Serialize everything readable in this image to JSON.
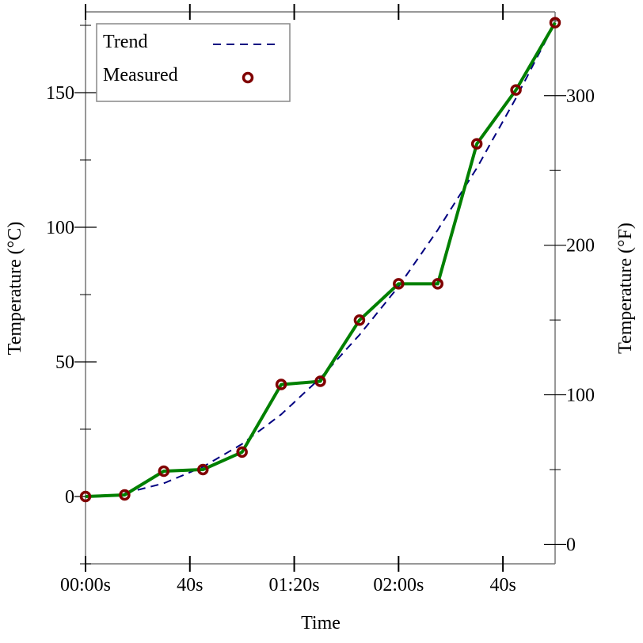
{
  "chart_data": {
    "type": "line",
    "xlabel": "Time",
    "ylabel": "Temperature (°C)",
    "y2label": "Temperature (°F)",
    "xlim": [
      0,
      180
    ],
    "ylim": [
      -25,
      180
    ],
    "y2lim": [
      -13,
      356
    ],
    "xticks": [
      0,
      40,
      80,
      120,
      160
    ],
    "xtick_labels": [
      "00:00s",
      "40s",
      "01:20s",
      "02:00s",
      "40s"
    ],
    "yticks": [
      0,
      50,
      100,
      150
    ],
    "ytick_labels": [
      "0",
      "50",
      "100",
      "150"
    ],
    "y2ticks": [
      0,
      100,
      200,
      300
    ],
    "y2tick_labels": [
      "0",
      "100",
      "200",
      "300"
    ],
    "grid": false,
    "legend_placement": "top-left",
    "series": [
      {
        "name": "Trend",
        "style": "dashed",
        "color": "#000080",
        "x": [
          15,
          30,
          45,
          60,
          75,
          90,
          105,
          120,
          135,
          150,
          165,
          180
        ],
        "values": [
          1.2,
          4.9,
          11,
          19.5,
          30.5,
          44,
          60,
          78,
          99,
          122,
          148,
          176
        ]
      },
      {
        "name": "Measured",
        "style": "line+circle-markers",
        "color": "#008000",
        "marker_color": "#800000",
        "x": [
          0,
          15,
          30,
          45,
          60,
          75,
          90,
          105,
          120,
          135,
          150,
          165,
          180
        ],
        "values": [
          0,
          0.6,
          9.4,
          10,
          16.5,
          41.6,
          42.8,
          65.5,
          79,
          79,
          131,
          151,
          176
        ]
      }
    ]
  }
}
